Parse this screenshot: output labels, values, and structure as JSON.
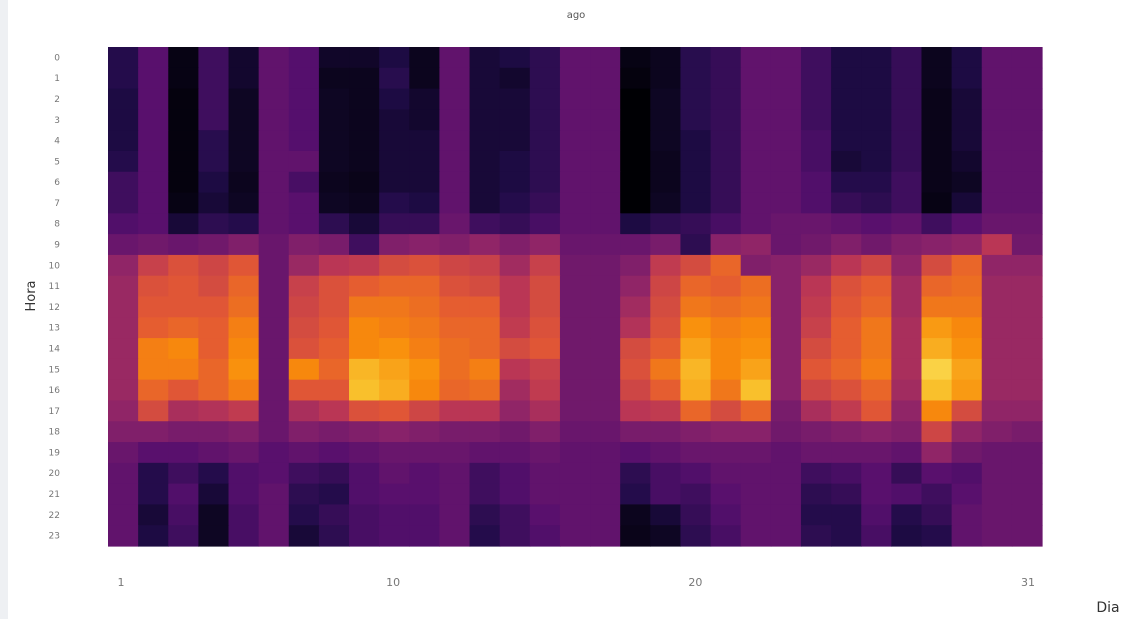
{
  "chart_data": {
    "type": "heatmap",
    "title": "ago",
    "xlabel": "Dia",
    "ylabel": "Hora",
    "x": [
      1,
      2,
      3,
      4,
      5,
      6,
      7,
      8,
      9,
      10,
      11,
      12,
      13,
      14,
      15,
      16,
      17,
      18,
      19,
      20,
      21,
      22,
      23,
      24,
      25,
      26,
      27,
      28,
      29,
      30,
      31
    ],
    "y": [
      0,
      1,
      2,
      3,
      4,
      5,
      6,
      7,
      8,
      9,
      10,
      11,
      12,
      13,
      14,
      15,
      16,
      17,
      18,
      19,
      20,
      21,
      22,
      23
    ],
    "x_tick_labels": [
      "1",
      "10",
      "20",
      "31"
    ],
    "x_tick_values": [
      1,
      10,
      20,
      31
    ],
    "y_tick_labels": [
      "0",
      "1",
      "2",
      "3",
      "4",
      "5",
      "6",
      "7",
      "8",
      "9",
      "10",
      "11",
      "12",
      "13",
      "14",
      "15",
      "16",
      "17",
      "18",
      "19",
      "20",
      "21",
      "22",
      "23"
    ],
    "colorscale": "inferno",
    "zlim": [
      0,
      1
    ],
    "z": [
      [
        0.14,
        0.26,
        0.03,
        0.2,
        0.08,
        0.28,
        0.25,
        0.07,
        0.07,
        0.12,
        0.05,
        0.28,
        0.1,
        0.12,
        0.16,
        0.28,
        0.28,
        0.03,
        0.05,
        0.15,
        0.18,
        0.28,
        0.28,
        0.2,
        0.12,
        0.12,
        0.18,
        0.05,
        0.12,
        0.28,
        0.28
      ],
      [
        0.14,
        0.26,
        0.03,
        0.2,
        0.08,
        0.28,
        0.25,
        0.05,
        0.05,
        0.15,
        0.05,
        0.28,
        0.1,
        0.08,
        0.16,
        0.28,
        0.28,
        0.02,
        0.05,
        0.15,
        0.18,
        0.28,
        0.28,
        0.2,
        0.12,
        0.12,
        0.18,
        0.05,
        0.12,
        0.28,
        0.28
      ],
      [
        0.12,
        0.26,
        0.02,
        0.2,
        0.06,
        0.28,
        0.25,
        0.06,
        0.05,
        0.12,
        0.08,
        0.28,
        0.1,
        0.1,
        0.16,
        0.28,
        0.28,
        0.0,
        0.06,
        0.15,
        0.18,
        0.28,
        0.28,
        0.2,
        0.12,
        0.12,
        0.18,
        0.04,
        0.1,
        0.28,
        0.28
      ],
      [
        0.12,
        0.26,
        0.02,
        0.2,
        0.06,
        0.28,
        0.25,
        0.06,
        0.05,
        0.1,
        0.08,
        0.28,
        0.1,
        0.1,
        0.16,
        0.28,
        0.28,
        0.0,
        0.06,
        0.15,
        0.18,
        0.28,
        0.28,
        0.2,
        0.12,
        0.12,
        0.18,
        0.04,
        0.1,
        0.28,
        0.28
      ],
      [
        0.12,
        0.26,
        0.02,
        0.15,
        0.06,
        0.28,
        0.25,
        0.06,
        0.05,
        0.1,
        0.1,
        0.28,
        0.1,
        0.1,
        0.16,
        0.28,
        0.28,
        0.0,
        0.06,
        0.12,
        0.18,
        0.28,
        0.28,
        0.22,
        0.12,
        0.12,
        0.18,
        0.04,
        0.1,
        0.28,
        0.28
      ],
      [
        0.14,
        0.26,
        0.02,
        0.15,
        0.06,
        0.28,
        0.28,
        0.06,
        0.05,
        0.1,
        0.1,
        0.28,
        0.1,
        0.12,
        0.16,
        0.28,
        0.28,
        0.0,
        0.05,
        0.12,
        0.18,
        0.28,
        0.28,
        0.22,
        0.1,
        0.12,
        0.18,
        0.04,
        0.08,
        0.28,
        0.28
      ],
      [
        0.2,
        0.26,
        0.02,
        0.12,
        0.05,
        0.28,
        0.22,
        0.05,
        0.04,
        0.1,
        0.1,
        0.28,
        0.1,
        0.12,
        0.16,
        0.28,
        0.28,
        0.0,
        0.05,
        0.12,
        0.18,
        0.28,
        0.28,
        0.24,
        0.14,
        0.14,
        0.2,
        0.04,
        0.06,
        0.28,
        0.28
      ],
      [
        0.2,
        0.26,
        0.03,
        0.1,
        0.06,
        0.28,
        0.26,
        0.06,
        0.05,
        0.14,
        0.12,
        0.28,
        0.1,
        0.14,
        0.18,
        0.28,
        0.28,
        0.0,
        0.06,
        0.12,
        0.18,
        0.28,
        0.28,
        0.24,
        0.18,
        0.16,
        0.2,
        0.03,
        0.1,
        0.28,
        0.28
      ],
      [
        0.24,
        0.26,
        0.1,
        0.16,
        0.14,
        0.28,
        0.26,
        0.16,
        0.1,
        0.18,
        0.18,
        0.3,
        0.2,
        0.18,
        0.22,
        0.28,
        0.28,
        0.12,
        0.16,
        0.18,
        0.22,
        0.28,
        0.3,
        0.3,
        0.28,
        0.26,
        0.28,
        0.2,
        0.26,
        0.3,
        0.3
      ],
      [
        0.3,
        0.32,
        0.3,
        0.32,
        0.36,
        0.3,
        0.36,
        0.34,
        0.2,
        0.36,
        0.38,
        0.36,
        0.4,
        0.36,
        0.4,
        0.3,
        0.3,
        0.3,
        0.34,
        0.16,
        0.38,
        0.4,
        0.3,
        0.32,
        0.36,
        0.32,
        0.36,
        0.38,
        0.4,
        0.5,
        0.32
      ],
      [
        0.4,
        0.54,
        0.6,
        0.56,
        0.62,
        0.3,
        0.42,
        0.5,
        0.52,
        0.58,
        0.6,
        0.56,
        0.54,
        0.44,
        0.54,
        0.32,
        0.32,
        0.36,
        0.52,
        0.58,
        0.66,
        0.36,
        0.38,
        0.42,
        0.5,
        0.56,
        0.4,
        0.58,
        0.66,
        0.4,
        0.4
      ],
      [
        0.42,
        0.6,
        0.62,
        0.58,
        0.66,
        0.3,
        0.54,
        0.6,
        0.64,
        0.66,
        0.66,
        0.6,
        0.58,
        0.5,
        0.58,
        0.32,
        0.32,
        0.4,
        0.56,
        0.66,
        0.64,
        0.68,
        0.38,
        0.5,
        0.6,
        0.64,
        0.44,
        0.66,
        0.68,
        0.42,
        0.42
      ],
      [
        0.42,
        0.62,
        0.62,
        0.62,
        0.68,
        0.3,
        0.56,
        0.6,
        0.7,
        0.7,
        0.68,
        0.64,
        0.64,
        0.5,
        0.58,
        0.32,
        0.32,
        0.44,
        0.58,
        0.7,
        0.68,
        0.7,
        0.38,
        0.52,
        0.62,
        0.66,
        0.44,
        0.7,
        0.7,
        0.42,
        0.42
      ],
      [
        0.42,
        0.64,
        0.66,
        0.64,
        0.72,
        0.3,
        0.58,
        0.62,
        0.74,
        0.72,
        0.7,
        0.66,
        0.66,
        0.52,
        0.6,
        0.32,
        0.32,
        0.48,
        0.6,
        0.76,
        0.72,
        0.74,
        0.38,
        0.54,
        0.64,
        0.7,
        0.46,
        0.78,
        0.74,
        0.42,
        0.42
      ],
      [
        0.42,
        0.72,
        0.74,
        0.64,
        0.74,
        0.3,
        0.6,
        0.64,
        0.74,
        0.76,
        0.72,
        0.68,
        0.66,
        0.58,
        0.62,
        0.32,
        0.32,
        0.58,
        0.64,
        0.8,
        0.74,
        0.76,
        0.38,
        0.58,
        0.64,
        0.7,
        0.46,
        0.82,
        0.76,
        0.42,
        0.42
      ],
      [
        0.42,
        0.72,
        0.72,
        0.66,
        0.76,
        0.3,
        0.74,
        0.66,
        0.84,
        0.8,
        0.76,
        0.68,
        0.72,
        0.5,
        0.54,
        0.32,
        0.32,
        0.6,
        0.7,
        0.84,
        0.74,
        0.8,
        0.38,
        0.62,
        0.66,
        0.72,
        0.46,
        0.9,
        0.8,
        0.42,
        0.42
      ],
      [
        0.42,
        0.66,
        0.62,
        0.66,
        0.72,
        0.3,
        0.62,
        0.62,
        0.86,
        0.82,
        0.74,
        0.66,
        0.68,
        0.44,
        0.52,
        0.32,
        0.32,
        0.56,
        0.64,
        0.82,
        0.7,
        0.86,
        0.38,
        0.56,
        0.6,
        0.66,
        0.44,
        0.86,
        0.78,
        0.42,
        0.42
      ],
      [
        0.4,
        0.58,
        0.46,
        0.48,
        0.52,
        0.3,
        0.46,
        0.5,
        0.6,
        0.62,
        0.56,
        0.5,
        0.5,
        0.4,
        0.46,
        0.32,
        0.32,
        0.5,
        0.52,
        0.66,
        0.58,
        0.66,
        0.34,
        0.46,
        0.52,
        0.62,
        0.4,
        0.74,
        0.58,
        0.4,
        0.4
      ],
      [
        0.36,
        0.36,
        0.34,
        0.34,
        0.36,
        0.3,
        0.36,
        0.34,
        0.36,
        0.38,
        0.36,
        0.34,
        0.34,
        0.32,
        0.36,
        0.3,
        0.3,
        0.34,
        0.34,
        0.36,
        0.38,
        0.38,
        0.32,
        0.34,
        0.36,
        0.38,
        0.36,
        0.56,
        0.4,
        0.36,
        0.34
      ],
      [
        0.3,
        0.26,
        0.26,
        0.28,
        0.3,
        0.26,
        0.28,
        0.26,
        0.28,
        0.3,
        0.3,
        0.3,
        0.28,
        0.28,
        0.3,
        0.28,
        0.28,
        0.26,
        0.28,
        0.3,
        0.3,
        0.3,
        0.28,
        0.3,
        0.3,
        0.3,
        0.28,
        0.4,
        0.32,
        0.3,
        0.3
      ],
      [
        0.28,
        0.14,
        0.2,
        0.14,
        0.24,
        0.26,
        0.2,
        0.18,
        0.24,
        0.28,
        0.26,
        0.28,
        0.2,
        0.24,
        0.28,
        0.28,
        0.28,
        0.16,
        0.22,
        0.24,
        0.28,
        0.28,
        0.28,
        0.2,
        0.22,
        0.26,
        0.18,
        0.26,
        0.24,
        0.3,
        0.3
      ],
      [
        0.28,
        0.14,
        0.24,
        0.1,
        0.24,
        0.28,
        0.16,
        0.14,
        0.24,
        0.26,
        0.26,
        0.28,
        0.2,
        0.24,
        0.28,
        0.28,
        0.28,
        0.14,
        0.22,
        0.2,
        0.26,
        0.28,
        0.28,
        0.16,
        0.18,
        0.26,
        0.24,
        0.2,
        0.26,
        0.3,
        0.3
      ],
      [
        0.28,
        0.1,
        0.22,
        0.06,
        0.22,
        0.28,
        0.14,
        0.18,
        0.22,
        0.24,
        0.24,
        0.28,
        0.16,
        0.2,
        0.26,
        0.28,
        0.28,
        0.05,
        0.1,
        0.18,
        0.24,
        0.28,
        0.28,
        0.14,
        0.14,
        0.24,
        0.14,
        0.18,
        0.28,
        0.3,
        0.3
      ],
      [
        0.28,
        0.12,
        0.2,
        0.06,
        0.22,
        0.28,
        0.1,
        0.16,
        0.22,
        0.24,
        0.24,
        0.28,
        0.14,
        0.2,
        0.24,
        0.28,
        0.28,
        0.04,
        0.06,
        0.16,
        0.22,
        0.28,
        0.28,
        0.16,
        0.14,
        0.22,
        0.12,
        0.14,
        0.28,
        0.3,
        0.3
      ]
    ]
  }
}
